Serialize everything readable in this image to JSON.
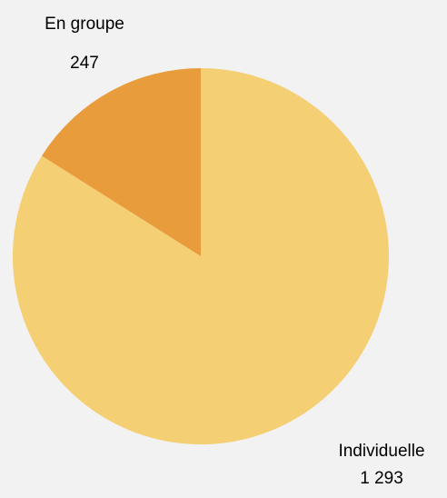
{
  "chart_data": {
    "type": "pie",
    "categories": [
      "Individuelle",
      "En groupe"
    ],
    "values": [
      1293,
      247
    ],
    "value_labels": [
      "1 293",
      "247"
    ],
    "colors": [
      "#f4cf73",
      "#e99c3c"
    ]
  }
}
